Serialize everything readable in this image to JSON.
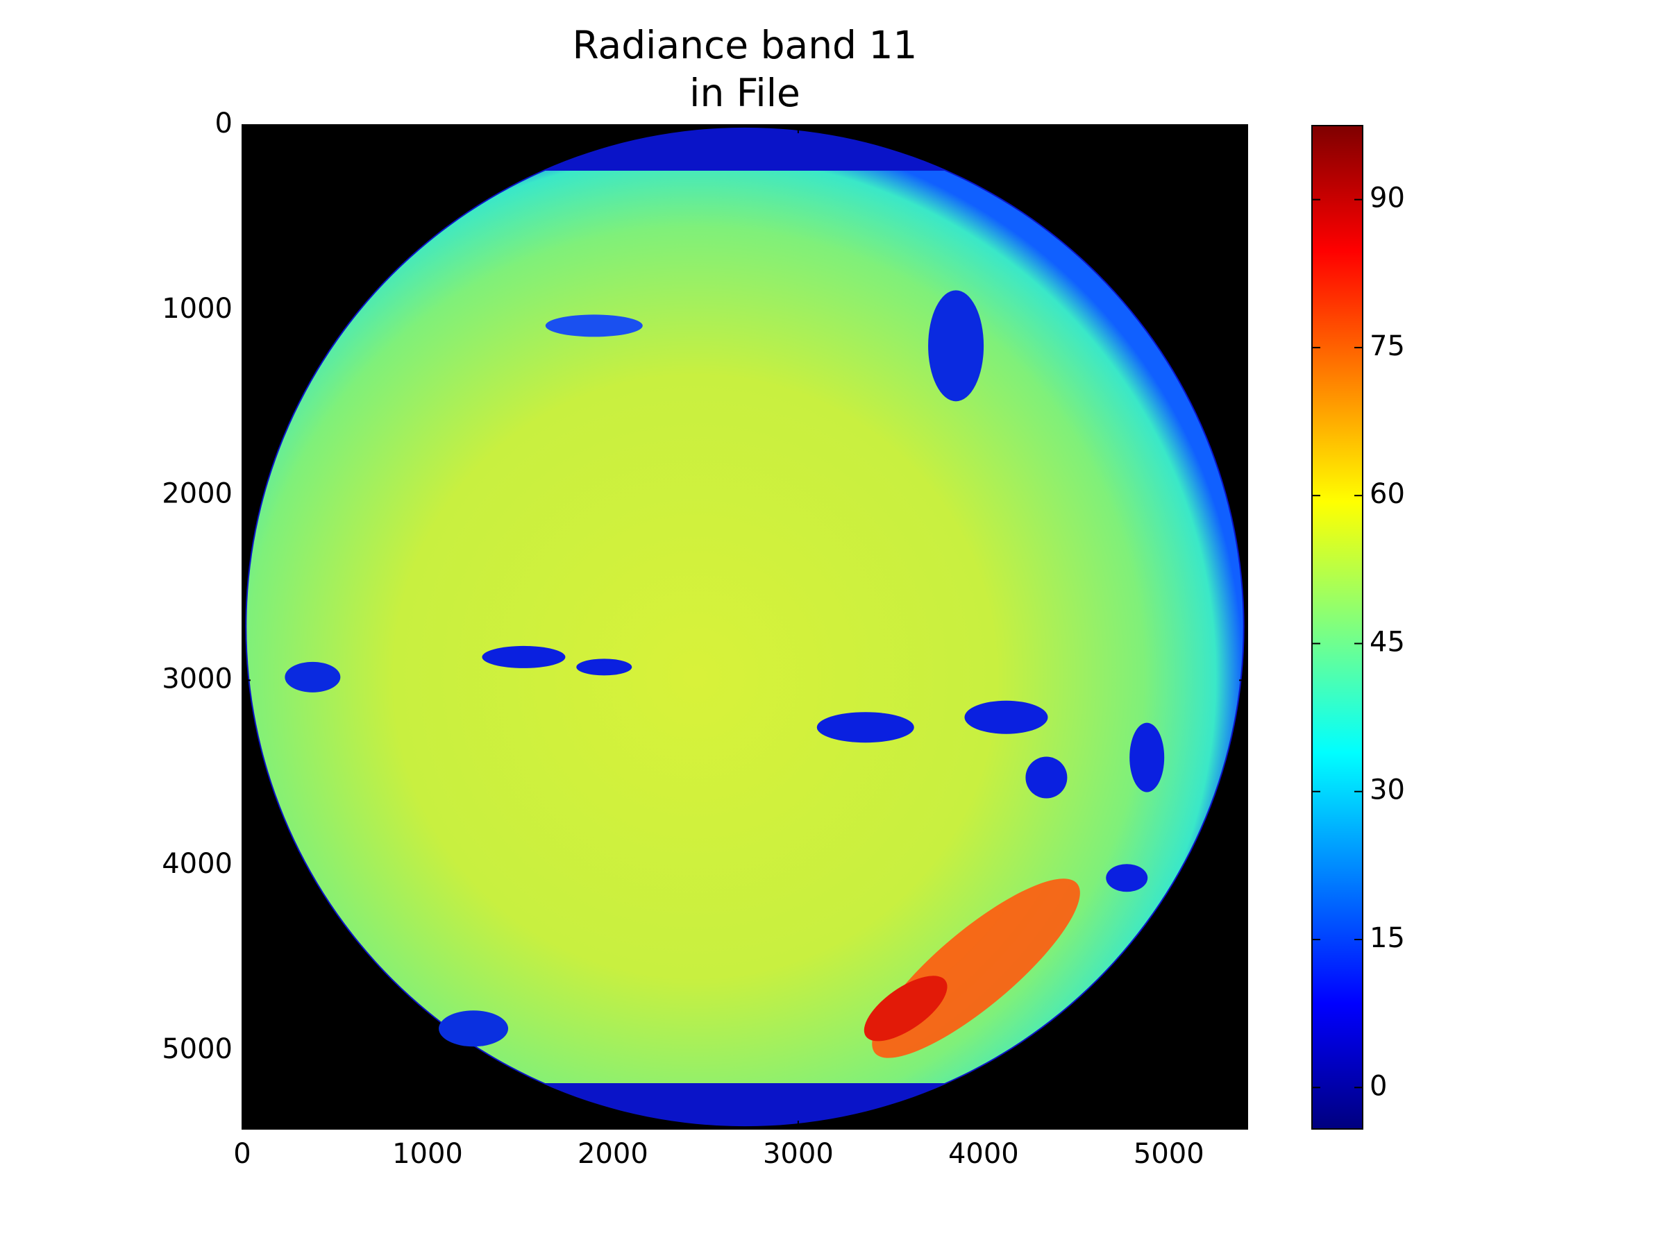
{
  "chart_data": {
    "type": "image",
    "title": [
      "Radiance band 11",
      "in File"
    ],
    "xlim": [
      0,
      5424
    ],
    "ylim": [
      5424,
      0
    ],
    "xticks": [
      0,
      1000,
      2000,
      3000,
      4000,
      5000
    ],
    "yticks": [
      0,
      1000,
      2000,
      3000,
      4000,
      5000
    ],
    "colormap": [
      "#00007f",
      "#0000ff",
      "#007fff",
      "#00ffff",
      "#7fff7f",
      "#ffff00",
      "#ff7f00",
      "#ff0000",
      "#7f0000"
    ],
    "colorbar": {
      "clim": [
        -4.2,
        97.5
      ],
      "ticks": [
        0,
        15,
        30,
        45,
        60,
        75,
        90
      ]
    }
  }
}
